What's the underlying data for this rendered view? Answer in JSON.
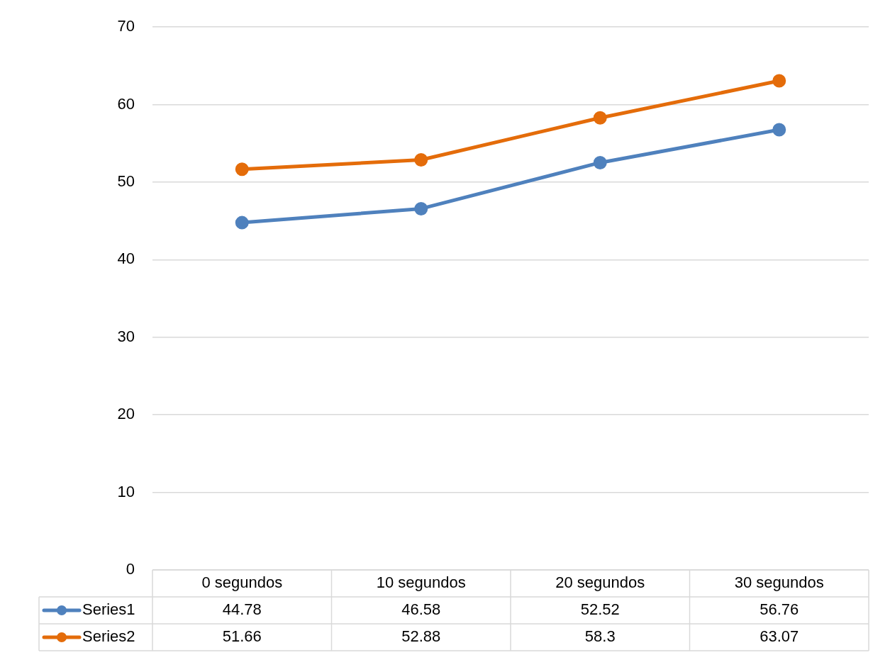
{
  "chart_data": {
    "type": "line",
    "categories": [
      "0 segundos",
      "10 segundos",
      "20 segundos",
      "30 segundos"
    ],
    "series": [
      {
        "name": "Series1",
        "color": "#4f81bd",
        "values": [
          44.78,
          46.58,
          52.52,
          56.76
        ]
      },
      {
        "name": "Series2",
        "color": "#e46c0a",
        "values": [
          51.66,
          52.88,
          58.3,
          63.07
        ]
      }
    ],
    "ylim": [
      0,
      70
    ],
    "yticks": [
      0,
      10,
      20,
      30,
      40,
      50,
      60,
      70
    ],
    "grid": "y",
    "marker": "circle",
    "line_style": "solid",
    "data_labels": true,
    "legend": "bottom"
  }
}
